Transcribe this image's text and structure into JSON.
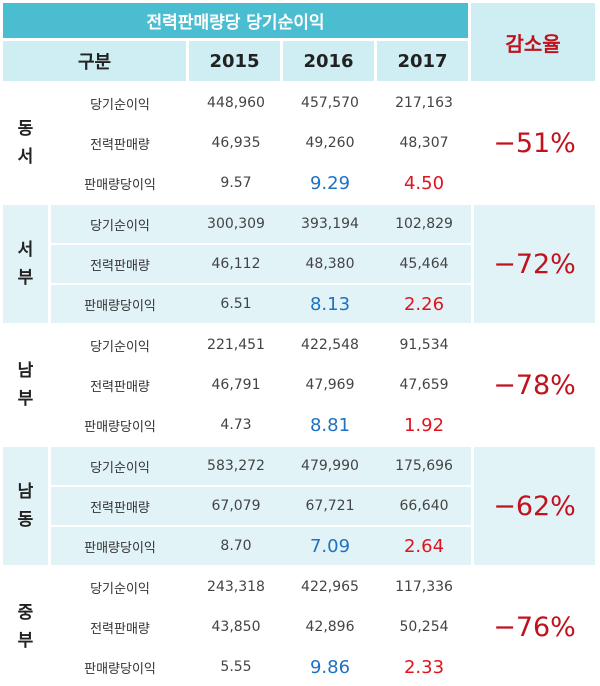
{
  "table": {
    "title": "전력판매량당 당기순이익",
    "header": {
      "group": "구분",
      "years": [
        "2015",
        "2016",
        "2017"
      ],
      "decrease": "감소율"
    },
    "regions": [
      {
        "name": "동서",
        "rows": [
          {
            "label": "당기순이익",
            "v2015": "448,960",
            "v2016": "457,570",
            "v2017": "217,163"
          },
          {
            "label": "전력판매량",
            "v2015": "46,935",
            "v2016": "49,260",
            "v2017": "48,307"
          },
          {
            "label": "판매량당이익",
            "v2015": "9.57",
            "v2016": "9.29",
            "v2017": "4.50"
          }
        ],
        "decrease": "−51%"
      },
      {
        "name": "서부",
        "rows": [
          {
            "label": "당기순이익",
            "v2015": "300,309",
            "v2016": "393,194",
            "v2017": "102,829"
          },
          {
            "label": "전력판매량",
            "v2015": "46,112",
            "v2016": "48,380",
            "v2017": "45,464"
          },
          {
            "label": "판매량당이익",
            "v2015": "6.51",
            "v2016": "8.13",
            "v2017": "2.26"
          }
        ],
        "decrease": "−72%"
      },
      {
        "name": "남부",
        "rows": [
          {
            "label": "당기순이익",
            "v2015": "221,451",
            "v2016": "422,548",
            "v2017": "91,534"
          },
          {
            "label": "전력판매량",
            "v2015": "46,791",
            "v2016": "47,969",
            "v2017": "47,659"
          },
          {
            "label": "판매량당이익",
            "v2015": "4.73",
            "v2016": "8.81",
            "v2017": "1.92"
          }
        ],
        "decrease": "−78%"
      },
      {
        "name": "남동",
        "rows": [
          {
            "label": "당기순이익",
            "v2015": "583,272",
            "v2016": "479,990",
            "v2017": "175,696"
          },
          {
            "label": "전력판매량",
            "v2015": "67,079",
            "v2016": "67,721",
            "v2017": "66,640"
          },
          {
            "label": "판매량당이익",
            "v2015": "8.70",
            "v2016": "7.09",
            "v2017": "2.64"
          }
        ],
        "decrease": "−62%"
      },
      {
        "name": "중부",
        "rows": [
          {
            "label": "당기순이익",
            "v2015": "243,318",
            "v2016": "422,965",
            "v2017": "117,336"
          },
          {
            "label": "전력판매량",
            "v2015": "43,850",
            "v2016": "42,896",
            "v2017": "50,254"
          },
          {
            "label": "판매량당이익",
            "v2015": "5.55",
            "v2016": "9.86",
            "v2017": "2.33"
          }
        ],
        "decrease": "−76%"
      }
    ]
  },
  "colors": {
    "header_teal": "#4bbdd0",
    "header_light": "#cfeef3",
    "band_tint": "#e2f3f7",
    "decrease_red": "#c0131e",
    "v2016_per_unit_blue": "#1d72c2",
    "v2017_per_unit_red": "#e0141e"
  }
}
